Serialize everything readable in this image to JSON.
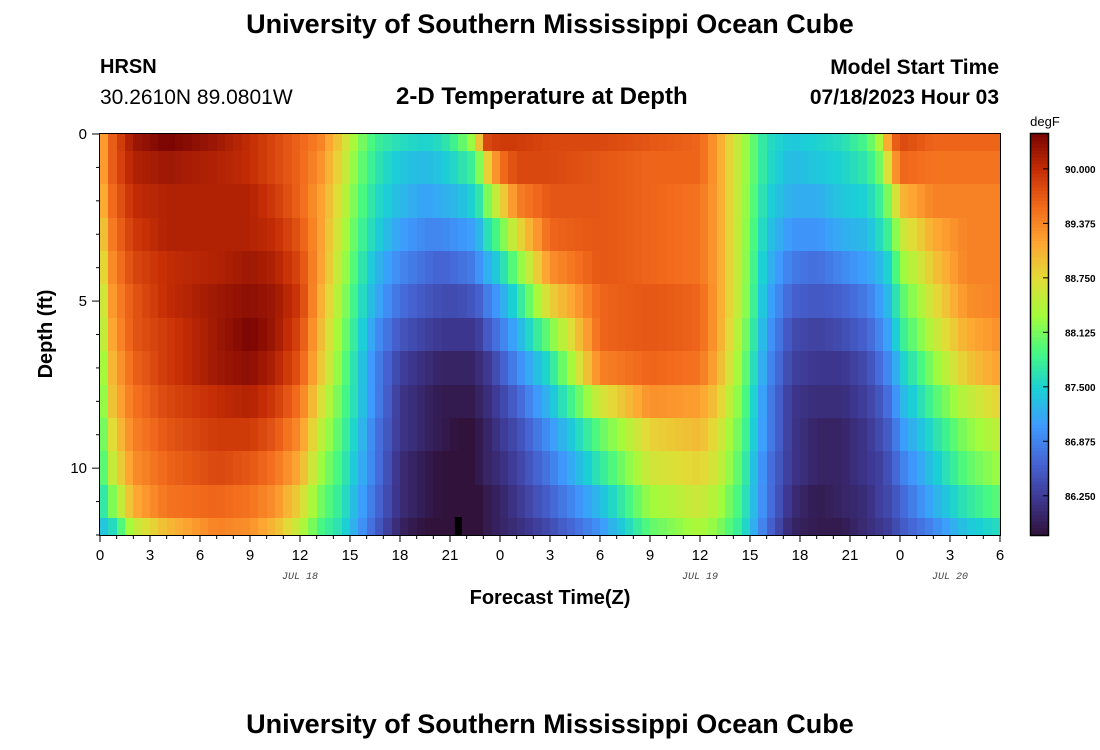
{
  "header": {
    "title": "University of Southern Mississippi Ocean Cube",
    "station": "HRSN",
    "coordinates": "30.2610N  89.0801W",
    "plot_title": "2-D Temperature at Depth",
    "model_start_label": "Model Start Time",
    "model_start_value": "07/18/2023 Hour 03"
  },
  "footer": {
    "title": "University of Southern Mississippi Ocean Cube"
  },
  "colors": {
    "colormap": [
      "#30123b",
      "#3e3892",
      "#4666d6",
      "#3e9bfe",
      "#1bd0d5",
      "#46f883",
      "#a2fc3c",
      "#e1dd37",
      "#fea632",
      "#f26a1c",
      "#c62e05",
      "#7a0403"
    ]
  },
  "chart_data": {
    "type": "heatmap",
    "title": "2-D Temperature at Depth",
    "xlabel": "Forecast Time(Z)",
    "ylabel": "Depth (ft)",
    "x_range_hours": [
      0,
      54
    ],
    "y_range_ft": [
      0,
      12
    ],
    "x_ticks": [
      {
        "h": 0,
        "label": "0"
      },
      {
        "h": 3,
        "label": "3"
      },
      {
        "h": 6,
        "label": "6"
      },
      {
        "h": 9,
        "label": "9"
      },
      {
        "h": 12,
        "label": "12"
      },
      {
        "h": 15,
        "label": "15"
      },
      {
        "h": 18,
        "label": "18"
      },
      {
        "h": 21,
        "label": "21"
      },
      {
        "h": 24,
        "label": "0"
      },
      {
        "h": 27,
        "label": "3"
      },
      {
        "h": 30,
        "label": "6"
      },
      {
        "h": 33,
        "label": "9"
      },
      {
        "h": 36,
        "label": "12"
      },
      {
        "h": 39,
        "label": "15"
      },
      {
        "h": 42,
        "label": "18"
      },
      {
        "h": 45,
        "label": "21"
      },
      {
        "h": 48,
        "label": "0"
      },
      {
        "h": 51,
        "label": "3"
      },
      {
        "h": 54,
        "label": "6"
      }
    ],
    "date_labels": [
      {
        "h": 12,
        "label": "JUL 18"
      },
      {
        "h": 36,
        "label": "JUL 19"
      },
      {
        "h": 51,
        "label": "JUL 20"
      }
    ],
    "y_ticks": [
      {
        "ft": 0,
        "label": "0"
      },
      {
        "ft": 5,
        "label": "5"
      },
      {
        "ft": 10,
        "label": "10"
      }
    ],
    "colorbar": {
      "unit": "degF",
      "min": 85.8,
      "max": 90.4,
      "ticks": [
        "90.000",
        "89.375",
        "88.750",
        "88.125",
        "87.500",
        "86.875",
        "86.250"
      ]
    },
    "marker_hours": 21.5,
    "grid": {
      "hours_start": 0,
      "hours_step": 0.5,
      "depth_step_ft": 1,
      "depths_ft": [
        0,
        1,
        2,
        3,
        4,
        5,
        6,
        7,
        8,
        9,
        10,
        11,
        12
      ],
      "time_keys_hours": [
        0,
        0.8,
        2,
        4,
        7,
        9,
        10.5,
        12,
        13.2,
        14.5,
        15.5,
        16.5,
        18,
        19.5,
        20.5,
        21.5,
        22.3,
        22.8,
        23.2,
        24,
        25,
        27,
        30,
        33,
        36,
        37,
        38.5,
        40,
        41.5,
        43,
        44.5,
        46,
        46.8,
        47.5,
        48,
        50,
        52,
        54
      ],
      "profiles_degF": [
        [
          89.0,
          89.0,
          88.9,
          88.7,
          88.5,
          88.3,
          88.2,
          88.0,
          87.9,
          87.8,
          87.7,
          87.5,
          87.3
        ],
        [
          89.7,
          89.7,
          89.6,
          89.5,
          89.4,
          89.3,
          89.2,
          89.1,
          89.0,
          88.8,
          88.6,
          88.2,
          87.6
        ],
        [
          90.2,
          90.1,
          90.0,
          89.9,
          89.8,
          89.7,
          89.7,
          89.6,
          89.5,
          89.4,
          89.3,
          89.1,
          88.5
        ],
        [
          90.4,
          90.2,
          90.1,
          90.1,
          90.0,
          90.0,
          89.9,
          89.9,
          89.8,
          89.7,
          89.6,
          89.5,
          89.0
        ],
        [
          90.2,
          90.1,
          90.1,
          90.1,
          90.1,
          90.2,
          90.2,
          90.2,
          90.0,
          89.9,
          89.8,
          89.6,
          89.4
        ],
        [
          90.0,
          90.0,
          90.1,
          90.1,
          90.2,
          90.3,
          90.4,
          90.3,
          90.1,
          89.9,
          89.7,
          89.5,
          89.3
        ],
        [
          89.8,
          89.8,
          89.9,
          90.0,
          90.1,
          90.2,
          90.2,
          90.1,
          89.9,
          89.7,
          89.5,
          89.3,
          89.0
        ],
        [
          89.6,
          89.6,
          89.6,
          89.7,
          89.8,
          89.9,
          89.8,
          89.7,
          89.5,
          89.3,
          89.1,
          88.8,
          88.5
        ],
        [
          89.4,
          89.3,
          89.2,
          89.2,
          89.2,
          89.1,
          89.0,
          88.9,
          88.7,
          88.5,
          88.3,
          88.1,
          87.9
        ],
        [
          88.8,
          88.7,
          88.6,
          88.5,
          88.4,
          88.3,
          88.2,
          88.1,
          88.0,
          87.9,
          87.8,
          87.7,
          87.6
        ],
        [
          88.2,
          88.1,
          88.0,
          87.9,
          87.8,
          87.7,
          87.6,
          87.5,
          87.5,
          87.4,
          87.3,
          87.2,
          87.1
        ],
        [
          87.8,
          87.7,
          87.6,
          87.5,
          87.3,
          87.2,
          87.0,
          86.9,
          86.9,
          86.8,
          86.8,
          86.7,
          86.6
        ],
        [
          87.6,
          87.4,
          87.3,
          87.1,
          86.9,
          86.7,
          86.5,
          86.3,
          86.2,
          86.2,
          86.1,
          86.1,
          86.0
        ],
        [
          87.5,
          87.3,
          87.1,
          86.9,
          86.7,
          86.5,
          86.3,
          86.1,
          86.0,
          86.0,
          85.9,
          85.9,
          85.8
        ],
        [
          87.6,
          87.4,
          87.2,
          86.9,
          86.6,
          86.4,
          86.2,
          86.0,
          85.9,
          85.9,
          85.8,
          85.8,
          85.8
        ],
        [
          87.9,
          87.6,
          87.3,
          87.0,
          86.7,
          86.4,
          86.2,
          86.0,
          85.9,
          85.8,
          85.8,
          85.8,
          85.8
        ],
        [
          88.3,
          87.8,
          87.5,
          87.1,
          86.8,
          86.5,
          86.2,
          86.0,
          85.9,
          85.8,
          85.8,
          85.8,
          85.8
        ],
        [
          89.0,
          88.2,
          87.7,
          87.3,
          87.0,
          86.6,
          86.3,
          86.1,
          86.0,
          85.9,
          85.9,
          85.8,
          85.8
        ],
        [
          89.8,
          88.8,
          88.1,
          87.6,
          87.2,
          86.8,
          86.5,
          86.2,
          86.1,
          86.0,
          86.0,
          85.9,
          85.9
        ],
        [
          89.9,
          89.5,
          88.7,
          88.0,
          87.5,
          87.1,
          86.8,
          86.5,
          86.3,
          86.2,
          86.1,
          86.0,
          86.0
        ],
        [
          89.9,
          89.8,
          89.4,
          88.7,
          88.1,
          87.6,
          87.2,
          86.9,
          86.6,
          86.4,
          86.3,
          86.2,
          86.1
        ],
        [
          89.8,
          89.8,
          89.7,
          89.6,
          89.3,
          88.8,
          88.1,
          87.6,
          87.3,
          87.0,
          86.8,
          86.6,
          86.4
        ],
        [
          89.8,
          89.7,
          89.7,
          89.7,
          89.7,
          89.6,
          89.6,
          89.4,
          88.6,
          88.0,
          87.7,
          87.3,
          87.0
        ],
        [
          89.7,
          89.6,
          89.6,
          89.6,
          89.6,
          89.7,
          89.7,
          89.6,
          89.3,
          88.8,
          88.6,
          88.3,
          88.0
        ],
        [
          89.6,
          89.6,
          89.5,
          89.5,
          89.5,
          89.6,
          89.6,
          89.5,
          89.2,
          89.0,
          88.8,
          88.6,
          88.4
        ],
        [
          89.2,
          89.2,
          89.2,
          89.2,
          89.2,
          89.2,
          89.2,
          89.1,
          88.9,
          88.7,
          88.6,
          88.4,
          88.2
        ],
        [
          88.4,
          88.4,
          88.4,
          88.4,
          88.4,
          88.4,
          88.3,
          88.2,
          88.1,
          88.0,
          87.9,
          87.8,
          87.7
        ],
        [
          87.6,
          87.6,
          87.5,
          87.4,
          87.3,
          87.2,
          87.1,
          87.0,
          86.9,
          86.9,
          86.8,
          86.8,
          86.7
        ],
        [
          87.4,
          87.3,
          87.2,
          87.0,
          86.8,
          86.6,
          86.4,
          86.3,
          86.2,
          86.2,
          86.2,
          86.1,
          86.0
        ],
        [
          87.5,
          87.4,
          87.2,
          87.0,
          86.7,
          86.5,
          86.3,
          86.2,
          86.1,
          86.0,
          86.0,
          85.9,
          85.9
        ],
        [
          87.6,
          87.5,
          87.4,
          87.2,
          86.9,
          86.6,
          86.4,
          86.2,
          86.1,
          86.0,
          86.0,
          86.0,
          85.9
        ],
        [
          87.9,
          87.7,
          87.5,
          87.3,
          87.1,
          86.8,
          86.6,
          86.4,
          86.3,
          86.2,
          86.2,
          86.1,
          86.1
        ],
        [
          88.4,
          88.1,
          87.8,
          87.6,
          87.3,
          87.1,
          86.9,
          86.7,
          86.5,
          86.4,
          86.3,
          86.3,
          86.2
        ],
        [
          89.5,
          89.0,
          88.3,
          87.9,
          87.6,
          87.4,
          87.2,
          87.0,
          86.8,
          86.6,
          86.5,
          86.4,
          86.3
        ],
        [
          89.8,
          89.6,
          89.0,
          88.5,
          88.2,
          87.9,
          87.7,
          87.4,
          87.2,
          87.0,
          86.8,
          86.6,
          86.5
        ],
        [
          89.6,
          89.5,
          89.4,
          89.1,
          88.9,
          88.7,
          88.5,
          88.2,
          87.9,
          87.6,
          87.4,
          87.2,
          86.9
        ],
        [
          89.6,
          89.5,
          89.4,
          89.4,
          89.4,
          89.3,
          89.1,
          88.9,
          88.5,
          88.2,
          88.0,
          87.7,
          87.4
        ],
        [
          89.6,
          89.5,
          89.4,
          89.4,
          89.4,
          89.4,
          89.3,
          89.2,
          88.8,
          88.5,
          88.3,
          88.0,
          87.6
        ]
      ]
    }
  }
}
